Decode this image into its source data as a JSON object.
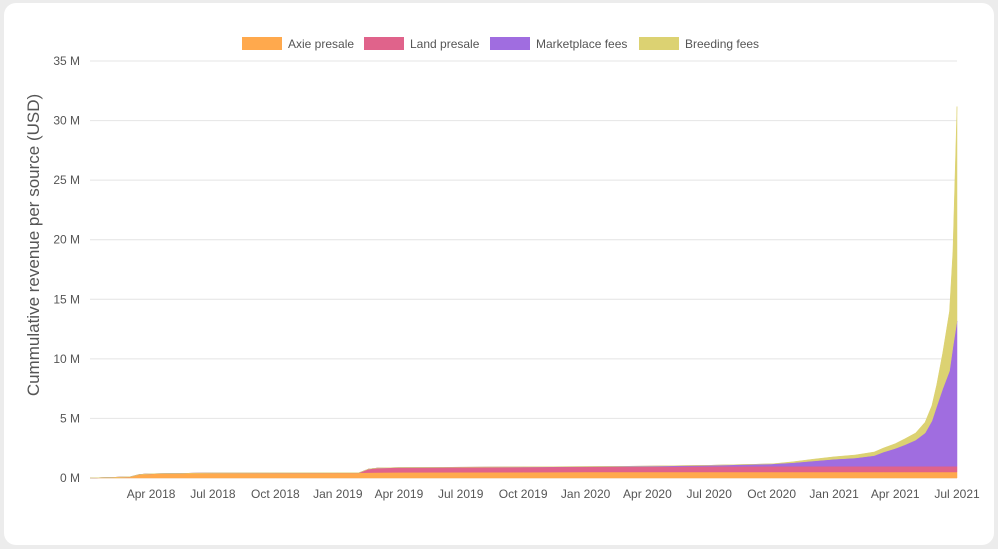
{
  "chart_data": {
    "type": "area",
    "stacked": true,
    "ylabel": "Cummulative revenue per source (USD)",
    "legend_position": "top",
    "grid": true,
    "ylim": [
      0,
      35000000
    ],
    "y_ticks": [
      {
        "value": 0,
        "label": "0 M"
      },
      {
        "value": 5000000,
        "label": "5 M"
      },
      {
        "value": 10000000,
        "label": "10 M"
      },
      {
        "value": 15000000,
        "label": "15 M"
      },
      {
        "value": 20000000,
        "label": "20 M"
      },
      {
        "value": 25000000,
        "label": "25 M"
      },
      {
        "value": 30000000,
        "label": "30 M"
      },
      {
        "value": 35000000,
        "label": "35 M"
      }
    ],
    "x_range": [
      "2018-01-01",
      "2021-07-01"
    ],
    "x_ticks": [
      {
        "date": "2018-04-01",
        "label": "Apr 2018"
      },
      {
        "date": "2018-07-01",
        "label": "Jul 2018"
      },
      {
        "date": "2018-10-01",
        "label": "Oct 2018"
      },
      {
        "date": "2019-01-01",
        "label": "Jan 2019"
      },
      {
        "date": "2019-04-01",
        "label": "Apr 2019"
      },
      {
        "date": "2019-07-01",
        "label": "Jul 2019"
      },
      {
        "date": "2019-10-01",
        "label": "Oct 2019"
      },
      {
        "date": "2020-01-01",
        "label": "Jan 2020"
      },
      {
        "date": "2020-04-01",
        "label": "Apr 2020"
      },
      {
        "date": "2020-07-01",
        "label": "Jul 2020"
      },
      {
        "date": "2020-10-01",
        "label": "Oct 2020"
      },
      {
        "date": "2021-01-01",
        "label": "Jan 2021"
      },
      {
        "date": "2021-04-01",
        "label": "Apr 2021"
      },
      {
        "date": "2021-07-01",
        "label": "Jul 2021"
      }
    ],
    "x": [
      "2018-01-01",
      "2018-02-01",
      "2018-03-01",
      "2018-03-15",
      "2018-04-01",
      "2018-05-01",
      "2018-06-01",
      "2018-07-01",
      "2018-10-01",
      "2019-01-01",
      "2019-02-01",
      "2019-02-15",
      "2019-03-01",
      "2019-04-01",
      "2019-07-01",
      "2019-10-01",
      "2020-01-01",
      "2020-04-01",
      "2020-07-01",
      "2020-10-01",
      "2020-11-01",
      "2020-12-01",
      "2021-01-01",
      "2021-02-01",
      "2021-03-01",
      "2021-03-15",
      "2021-04-01",
      "2021-04-15",
      "2021-05-01",
      "2021-05-15",
      "2021-05-25",
      "2021-06-01",
      "2021-06-10",
      "2021-06-20",
      "2021-06-25",
      "2021-07-01"
    ],
    "series": [
      {
        "name": "Axie presale",
        "color": "#ffa94d",
        "values": [
          0,
          50000,
          100000,
          300000,
          350000,
          380000,
          400000,
          420000,
          430000,
          440000,
          440000,
          450000,
          460000,
          470000,
          480000,
          490000,
          500000,
          500000,
          500000,
          500000,
          500000,
          500000,
          500000,
          500000,
          500000,
          500000,
          500000,
          500000,
          500000,
          500000,
          500000,
          500000,
          500000,
          500000,
          500000,
          500000
        ]
      },
      {
        "name": "Land presale",
        "color": "#e0638b",
        "values": [
          0,
          0,
          0,
          0,
          0,
          0,
          0,
          0,
          0,
          0,
          0,
          300000,
          380000,
          400000,
          420000,
          430000,
          440000,
          450000,
          470000,
          480000,
          480000,
          480000,
          480000,
          480000,
          480000,
          480000,
          480000,
          480000,
          480000,
          480000,
          480000,
          480000,
          480000,
          480000,
          480000,
          480000
        ]
      },
      {
        "name": "Marketplace fees",
        "color": "#a06de0",
        "values": [
          0,
          0,
          0,
          0,
          0,
          0,
          0,
          0,
          0,
          0,
          0,
          0,
          0,
          0,
          5000,
          10000,
          20000,
          50000,
          100000,
          200000,
          300000,
          450000,
          600000,
          700000,
          900000,
          1200000,
          1500000,
          1800000,
          2200000,
          2800000,
          3800000,
          5000000,
          6500000,
          8000000,
          10000000,
          12200000
        ]
      },
      {
        "name": "Breeding fees",
        "color": "#dcd272",
        "values": [
          0,
          0,
          0,
          0,
          0,
          0,
          0,
          0,
          0,
          0,
          0,
          0,
          0,
          0,
          0,
          0,
          0,
          0,
          0,
          0,
          80000,
          150000,
          200000,
          250000,
          300000,
          350000,
          400000,
          500000,
          600000,
          900000,
          1300000,
          1800000,
          3000000,
          5000000,
          8000000,
          18000000
        ]
      }
    ]
  }
}
